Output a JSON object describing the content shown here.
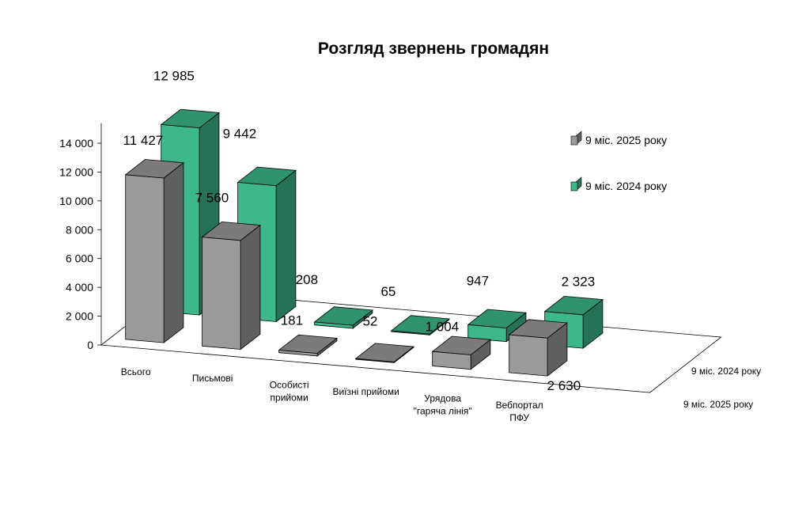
{
  "chart_data": {
    "type": "bar",
    "title": "Розгляд звернень громадян",
    "categories": [
      {
        "lines": [
          "Всього"
        ]
      },
      {
        "lines": [
          "Письмові"
        ]
      },
      {
        "lines": [
          "Особисті",
          "прийоми"
        ]
      },
      {
        "lines": [
          "Виїзні прийоми"
        ]
      },
      {
        "lines": [
          "Урядова",
          "\"гаряча лінія\""
        ]
      },
      {
        "lines": [
          "Вебпортал",
          "ПФУ"
        ]
      }
    ],
    "series": [
      {
        "name": "9 міс. 2025 року",
        "color": "#9a9a9a",
        "values": [
          11427,
          7560,
          181,
          52,
          1004,
          2630
        ],
        "labels": [
          "11 427",
          "7 560",
          "181",
          "52",
          "1 004",
          "2 630"
        ]
      },
      {
        "name": "9 міс. 2024 року",
        "color": "#3cb88a",
        "values": [
          12985,
          9442,
          208,
          65,
          947,
          2323
        ],
        "labels": [
          "12 985",
          "9 442",
          "208",
          "65",
          "947",
          "2 323"
        ]
      }
    ],
    "depth_axis_labels": [
      "9 міс. 2024 року",
      "9 міс. 2025 року"
    ],
    "ylim": [
      0,
      14000
    ],
    "yticks": [
      0,
      2000,
      4000,
      6000,
      8000,
      10000,
      12000,
      14000
    ],
    "ytick_labels": [
      "0",
      "2 000",
      "4 000",
      "6 000",
      "8 000",
      "10 000",
      "12 000",
      "14 000"
    ],
    "legend_position": "right"
  }
}
